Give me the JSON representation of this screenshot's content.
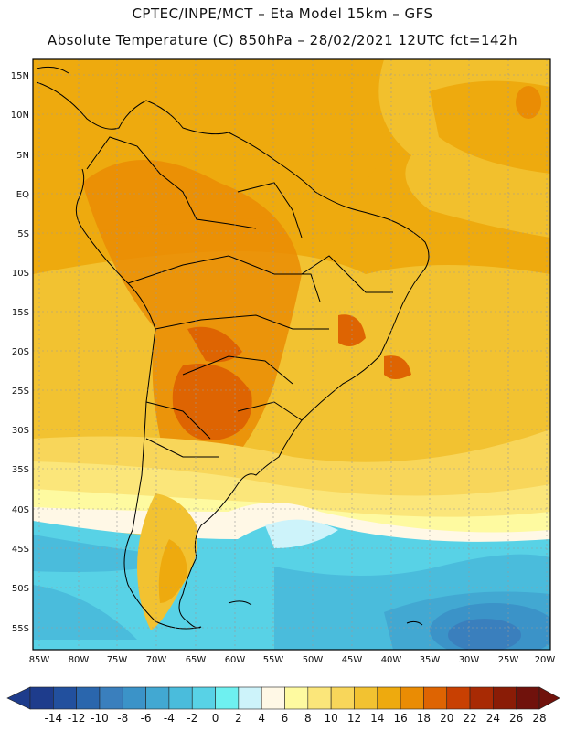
{
  "header": {
    "line1": "CPTEC/INPE/MCT –  Eta Model 15km – GFS",
    "line2": "Absolute Temperature (C) 850hPa – 28/02/2021 12UTC fct=142h"
  },
  "map": {
    "lat_labels": [
      "15N",
      "10N",
      "5N",
      "EQ",
      "5S",
      "10S",
      "15S",
      "20S",
      "25S",
      "30S",
      "35S",
      "40S",
      "45S",
      "50S",
      "55S"
    ],
    "lon_labels": [
      "85W",
      "80W",
      "75W",
      "70W",
      "65W",
      "60W",
      "55W",
      "50W",
      "45W",
      "40W",
      "35W",
      "30W",
      "25W",
      "20W"
    ]
  },
  "colorbar": {
    "ticks": [
      "-14",
      "-12",
      "-10",
      "-8",
      "-6",
      "-4",
      "-2",
      "0",
      "2",
      "4",
      "6",
      "8",
      "10",
      "12",
      "14",
      "16",
      "18",
      "20",
      "22",
      "24",
      "26",
      "28"
    ],
    "colors": [
      "#1e3c8c",
      "#22509e",
      "#2a66ad",
      "#3a7fbd",
      "#3b93c8",
      "#42a8d2",
      "#4abcdc",
      "#58d2e6",
      "#6ef0f0",
      "#cdf3fa",
      "#fff8e6",
      "#fefaa0",
      "#fbe67a",
      "#f8d65a",
      "#f2c231",
      "#eeaa0e",
      "#ea8c04",
      "#de6402",
      "#c84002",
      "#a82a04",
      "#8a1c06",
      "#70120c"
    ]
  }
}
